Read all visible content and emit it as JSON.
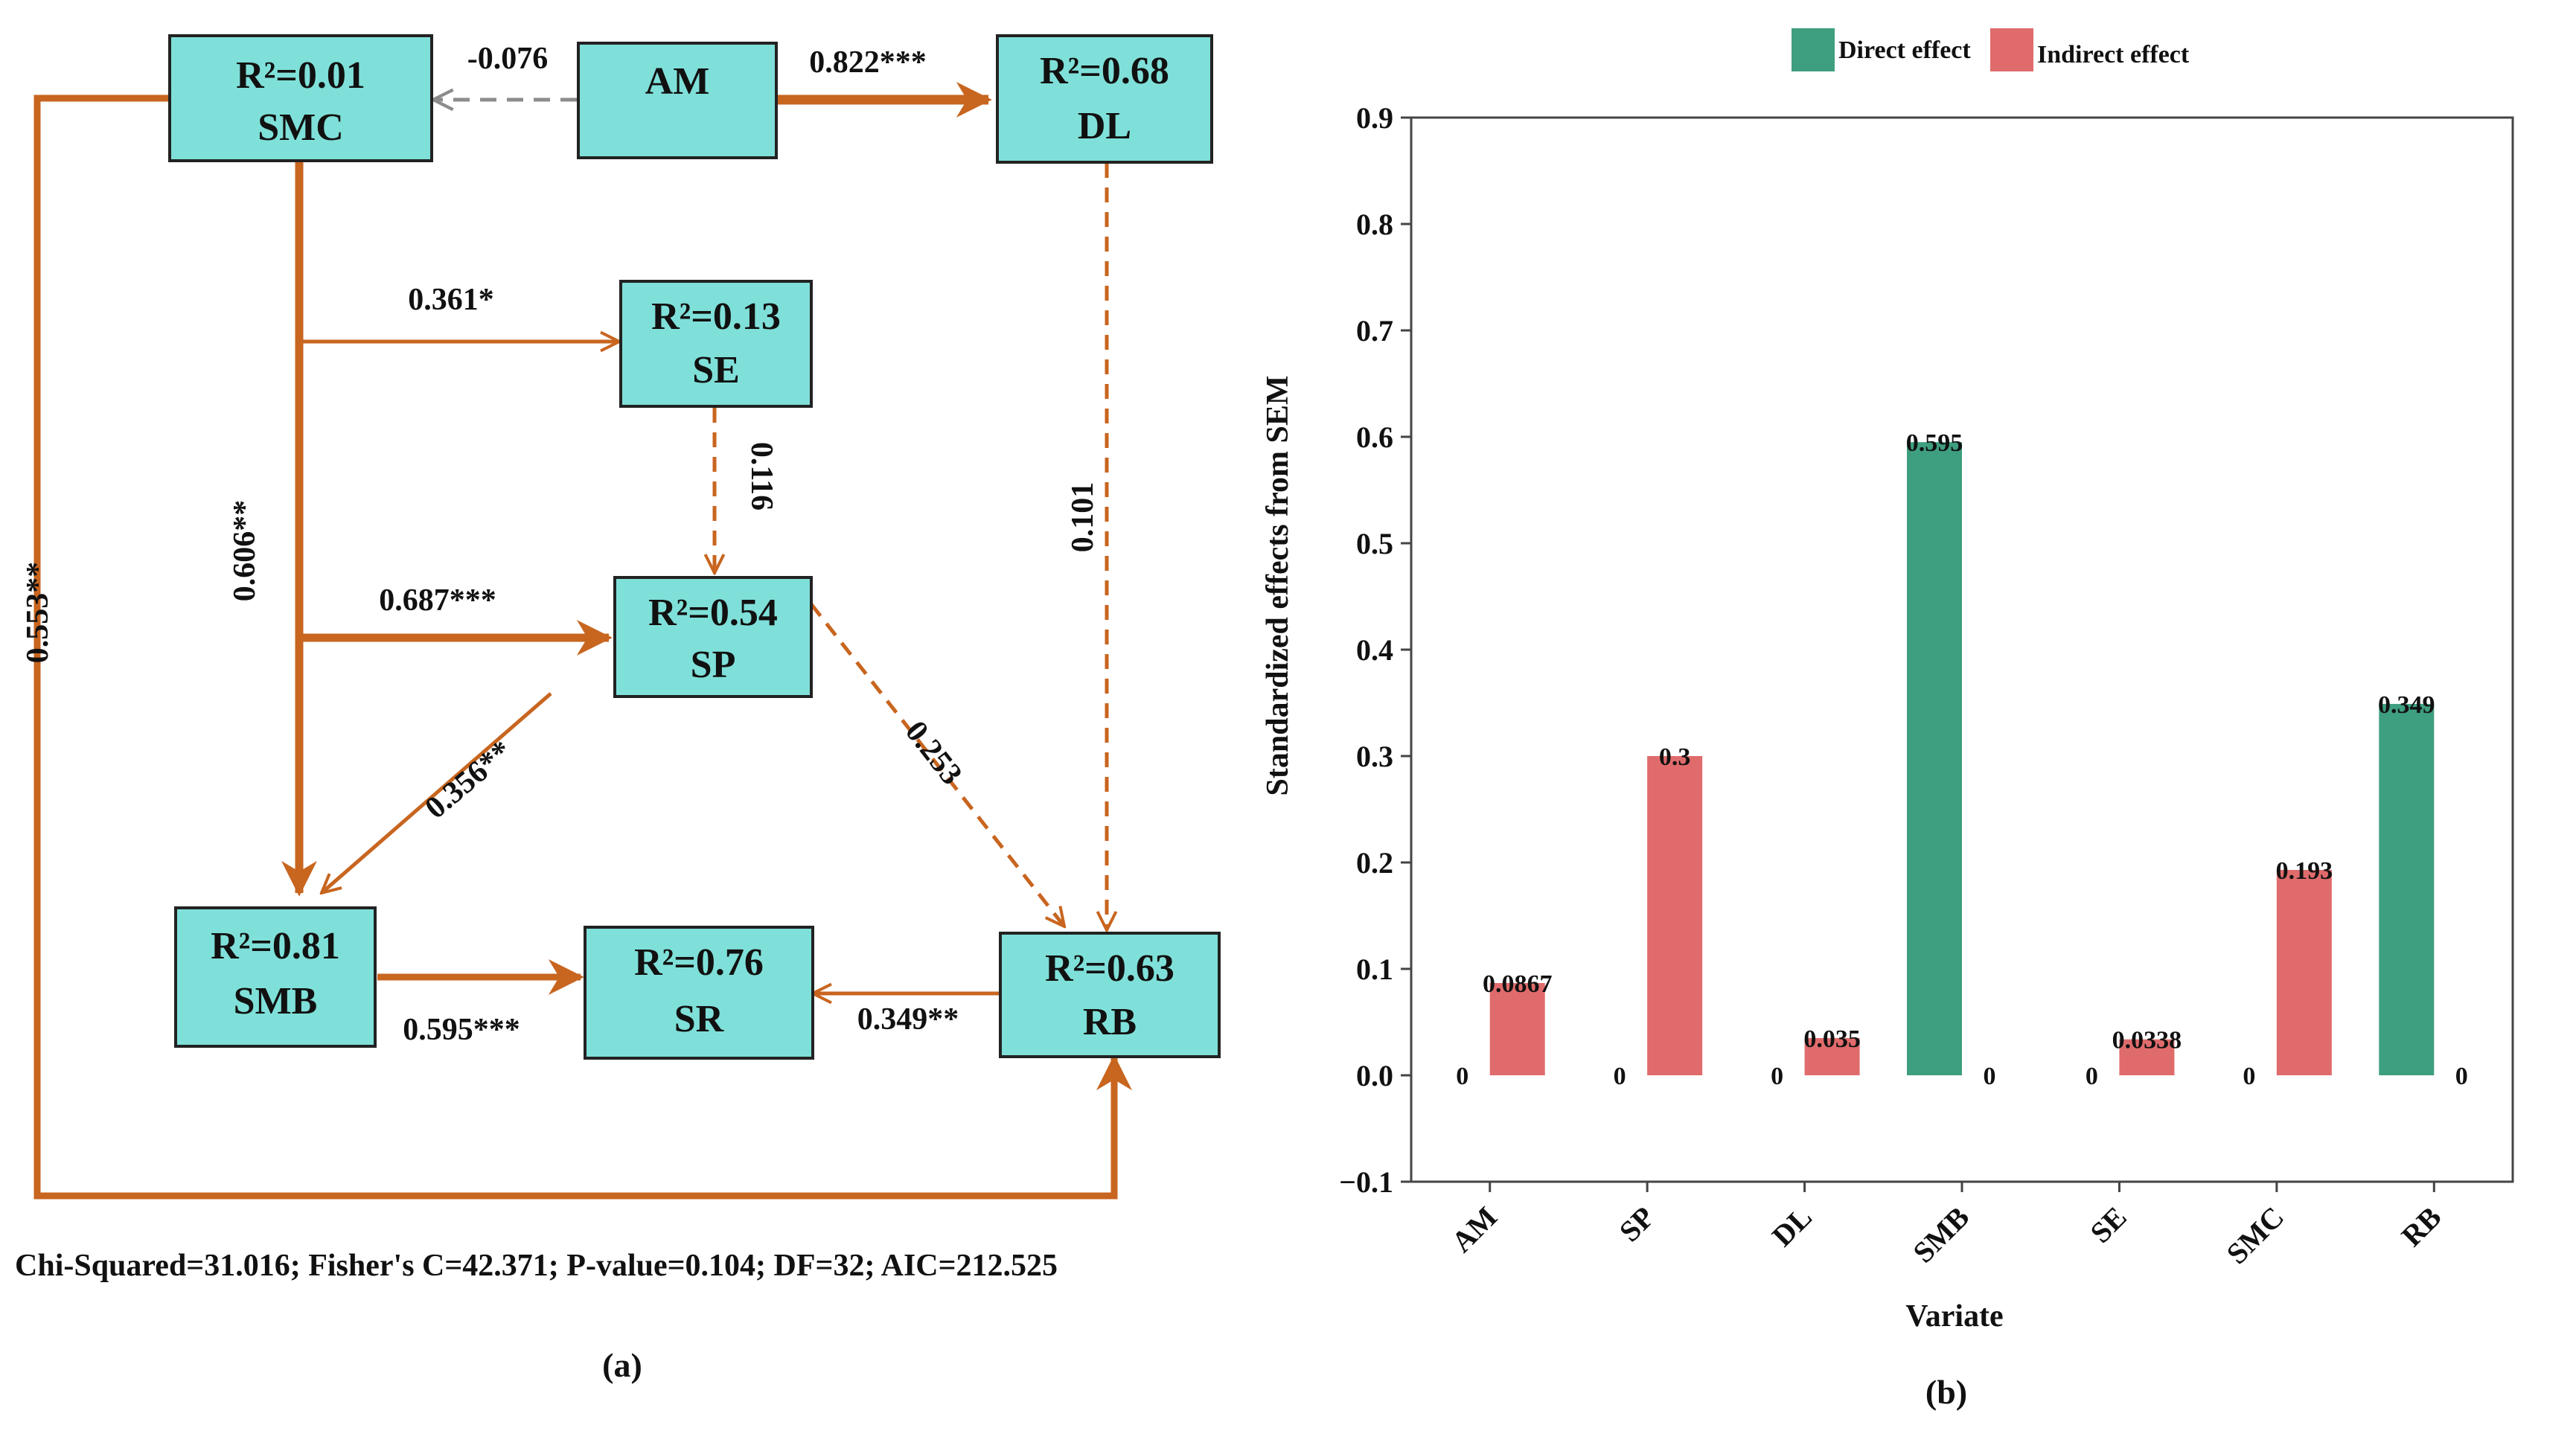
{
  "panel_a": {
    "label": "(a)",
    "fit_stats": "Chi-Squared=31.016; Fisher's C=42.371; P-value=0.104; DF=32; AIC=212.525",
    "colors": {
      "node_fill": "#7fe0d9",
      "significant_path": "#c8651f",
      "non_significant_negative": "#8c8c8c"
    },
    "nodes": [
      {
        "id": "SMC",
        "r2": "R²=0.01",
        "name": "SMC"
      },
      {
        "id": "AM",
        "r2": "",
        "name": "AM"
      },
      {
        "id": "DL",
        "r2": "R²=0.68",
        "name": "DL"
      },
      {
        "id": "SE",
        "r2": "R²=0.13",
        "name": "SE"
      },
      {
        "id": "SP",
        "r2": "R²=0.54",
        "name": "SP"
      },
      {
        "id": "SMB",
        "r2": "R²=0.81",
        "name": "SMB"
      },
      {
        "id": "SR",
        "r2": "R²=0.76",
        "name": "SR"
      },
      {
        "id": "RB",
        "r2": "R²=0.63",
        "name": "RB"
      }
    ],
    "paths": [
      {
        "from": "AM",
        "to": "SMC",
        "coef": "-0.076",
        "style": "dashed",
        "sign": "negative"
      },
      {
        "from": "AM",
        "to": "DL",
        "coef": "0.822***",
        "style": "solid",
        "sign": "positive"
      },
      {
        "from": "SMC",
        "to": "SE",
        "coef": "0.361*",
        "style": "solid",
        "sign": "positive"
      },
      {
        "from": "SE",
        "to": "SP",
        "coef": "0.116",
        "style": "dashed",
        "sign": "positive"
      },
      {
        "from": "DL",
        "to": "RB",
        "coef": "0.101",
        "style": "dashed",
        "sign": "positive"
      },
      {
        "from": "SMC",
        "to": "SMB",
        "coef": "0.606**",
        "style": "solid",
        "sign": "positive"
      },
      {
        "from": "SMC",
        "to": "SP",
        "coef": "0.687***",
        "style": "solid",
        "sign": "positive"
      },
      {
        "from": "SMC",
        "to": "RB",
        "coef": "0.553**",
        "style": "solid",
        "sign": "positive"
      },
      {
        "from": "SP",
        "to": "SMB",
        "coef": "0.356**",
        "style": "solid",
        "sign": "positive"
      },
      {
        "from": "SP",
        "to": "RB",
        "coef": "0.253",
        "style": "dashed",
        "sign": "positive"
      },
      {
        "from": "SMB",
        "to": "SR",
        "coef": "0.595***",
        "style": "solid",
        "sign": "positive"
      },
      {
        "from": "RB",
        "to": "SR",
        "coef": "0.349**",
        "style": "solid",
        "sign": "positive"
      }
    ]
  },
  "panel_b": {
    "label": "(b)"
  },
  "chart_data": {
    "type": "bar",
    "title": "",
    "xlabel": "Variate",
    "ylabel": "Standardized effects from SEM",
    "ylim": [
      -0.1,
      0.9
    ],
    "yticks": [
      -0.1,
      0.0,
      0.1,
      0.2,
      0.3,
      0.4,
      0.5,
      0.6,
      0.7,
      0.8,
      0.9
    ],
    "ytick_labels": [
      "−0.1",
      "0.0",
      "0.1",
      "0.2",
      "0.3",
      "0.4",
      "0.5",
      "0.6",
      "0.7",
      "0.8",
      "0.9"
    ],
    "grid": false,
    "legend_position": "top-center",
    "categories": [
      "AM",
      "SP",
      "DL",
      "SMB",
      "SE",
      "SMC",
      "RB"
    ],
    "series": [
      {
        "name": "Direct effect",
        "color": "#3e9e80",
        "values": [
          0,
          0,
          0,
          0.595,
          0,
          0,
          0.349
        ],
        "labels": [
          "0",
          "0",
          "0",
          "0.595",
          "0",
          "0",
          "0.349"
        ]
      },
      {
        "name": "Indirect effect",
        "color": "#e06b6c",
        "values": [
          0.0867,
          0.3,
          0.035,
          0,
          0.0338,
          0.193,
          0
        ],
        "labels": [
          "0.0867",
          "0.3",
          "0.035",
          "0",
          "0.0338",
          "0.193",
          "0"
        ]
      }
    ]
  }
}
